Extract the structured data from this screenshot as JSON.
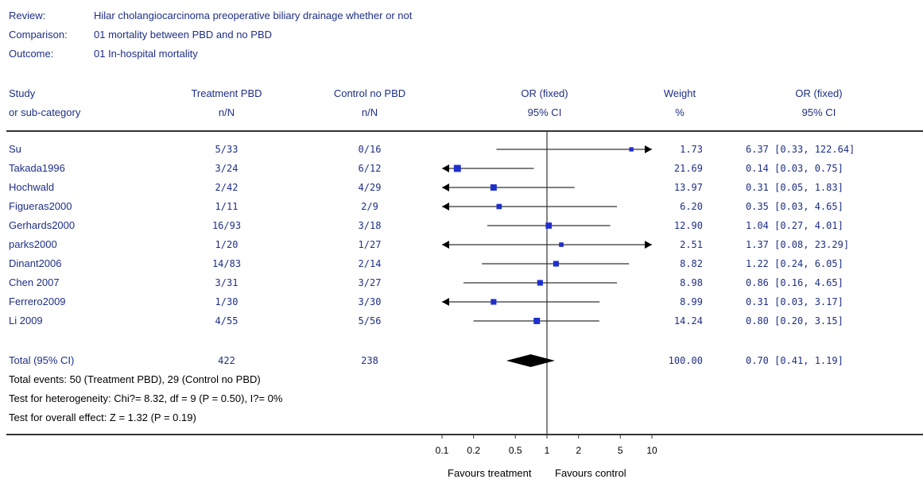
{
  "header": {
    "review_label": "Review:",
    "review_value": "Hilar cholangiocarcinoma preoperative biliary drainage whether or not",
    "comparison_label": "Comparison:",
    "comparison_value": "01 mortality  between PBD  and no PBD",
    "outcome_label": "Outcome:",
    "outcome_value": "01 In-hospital mortality"
  },
  "columns": {
    "study_1": "Study",
    "study_2": "or sub-category",
    "treat_1": "Treatment  PBD",
    "treat_2": "n/N",
    "control_1": "Control no PBD",
    "control_2": "n/N",
    "or_1": "OR (fixed)",
    "or_2": "95% CI",
    "weight_1": "Weight",
    "weight_2": "%",
    "orci_1": "OR (fixed)",
    "orci_2": "95% CI"
  },
  "colors": {
    "text": "#1e2f86",
    "marker": "#1f2fcc",
    "line": "#333333",
    "diamond": "#000000"
  },
  "chart_data": {
    "type": "forest",
    "x_scale": "log",
    "xlim": [
      0.1,
      10
    ],
    "x_ticks": [
      0.1,
      0.2,
      0.5,
      1,
      2,
      5,
      10
    ],
    "x_tick_labels": [
      "0.1",
      "0.2",
      "0.5",
      "1",
      "2",
      "5",
      "10"
    ],
    "xlabel_left": "Favours treatment",
    "xlabel_right": "Favours control",
    "studies": [
      {
        "name": "Su",
        "treatment": "5/33",
        "control": "0/16",
        "or": 6.37,
        "lo": 0.33,
        "hi": 122.64,
        "weight": "1.73",
        "ci_text": "6.37 [0.33, 122.64]"
      },
      {
        "name": "Takada1996",
        "treatment": "3/24",
        "control": "6/12",
        "or": 0.14,
        "lo": 0.03,
        "hi": 0.75,
        "weight": "21.69",
        "ci_text": "0.14 [0.03, 0.75]"
      },
      {
        "name": "Hochwald",
        "treatment": "2/42",
        "control": "4/29",
        "or": 0.31,
        "lo": 0.05,
        "hi": 1.83,
        "weight": "13.97",
        "ci_text": "0.31 [0.05, 1.83]"
      },
      {
        "name": "Figueras2000",
        "treatment": "1/11",
        "control": "2/9",
        "or": 0.35,
        "lo": 0.03,
        "hi": 4.65,
        "weight": "6.20",
        "ci_text": "0.35 [0.03, 4.65]"
      },
      {
        "name": "Gerhards2000",
        "treatment": "16/93",
        "control": "3/18",
        "or": 1.04,
        "lo": 0.27,
        "hi": 4.01,
        "weight": "12.90",
        "ci_text": "1.04 [0.27, 4.01]"
      },
      {
        "name": "parks2000",
        "treatment": "1/20",
        "control": "1/27",
        "or": 1.37,
        "lo": 0.08,
        "hi": 23.29,
        "weight": "2.51",
        "ci_text": "1.37 [0.08, 23.29]"
      },
      {
        "name": "Dinant2006",
        "treatment": "14/83",
        "control": "2/14",
        "or": 1.22,
        "lo": 0.24,
        "hi": 6.05,
        "weight": "8.82",
        "ci_text": "1.22 [0.24, 6.05]"
      },
      {
        "name": "Chen 2007",
        "treatment": "3/31",
        "control": "3/27",
        "or": 0.86,
        "lo": 0.16,
        "hi": 4.65,
        "weight": "8.98",
        "ci_text": "0.86 [0.16, 4.65]"
      },
      {
        "name": "Ferrero2009",
        "treatment": "1/30",
        "control": "3/30",
        "or": 0.31,
        "lo": 0.03,
        "hi": 3.17,
        "weight": "8.99",
        "ci_text": "0.31 [0.03, 3.17]"
      },
      {
        "name": "Li 2009",
        "treatment": "4/55",
        "control": "5/56",
        "or": 0.8,
        "lo": 0.2,
        "hi": 3.15,
        "weight": "14.24",
        "ci_text": "0.80 [0.20, 3.15]"
      }
    ],
    "total": {
      "name": "Total (95% CI)",
      "treatment": "422",
      "control": "238",
      "or": 0.7,
      "lo": 0.41,
      "hi": 1.19,
      "weight": "100.00",
      "ci_text": "0.70 [0.41, 1.19]"
    },
    "notes": [
      "Total events: 50 (Treatment  PBD), 29 (Control no PBD)",
      "Test for heterogeneity: Chi?= 8.32, df = 9 (P = 0.50), I?= 0%",
      "Test for overall effect: Z = 1.32 (P = 0.19)"
    ]
  }
}
